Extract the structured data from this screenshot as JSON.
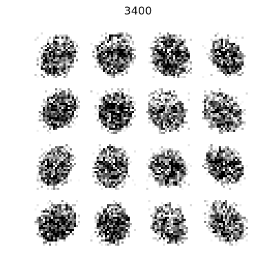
{
  "figure": {
    "title": "3400",
    "grid_rows": 4,
    "grid_cols": 4,
    "tile_content": "grayscale-generated-face",
    "tone_palette": [
      "#ffffff",
      "#e3e3e3",
      "#bdbdbd",
      "#8c8c8c",
      "#555555",
      "#2a2a2a",
      "#0b0b0b"
    ]
  }
}
